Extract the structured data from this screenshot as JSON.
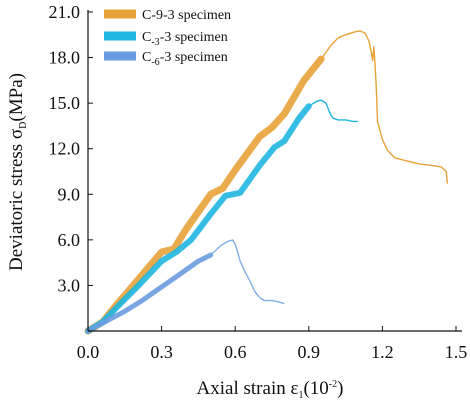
{
  "chart_data": {
    "type": "line",
    "xlabel": "Axial strain ε",
    "xlabel_sub": "1",
    "xlabel_unit": "(10",
    "xlabel_unit_sup": "-2",
    "xlabel_close": ")",
    "ylabel": "Deviatoric stress σ",
    "ylabel_sub": "D",
    "ylabel_unit": "(MPa)",
    "xlim": [
      0.0,
      1.5
    ],
    "ylim": [
      0.0,
      21.0
    ],
    "xticks": [
      "0.0",
      "0.3",
      "0.6",
      "0.9",
      "1.2",
      "1.5"
    ],
    "yticks": [
      "3.0",
      "6.0",
      "9.0",
      "12.0",
      "15.0",
      "18.0",
      "21.0"
    ],
    "grid": false,
    "legend_position": "top-left",
    "series": [
      {
        "name": "C-9-3 specimen",
        "name_parts": [
          "C-9-3 specimen"
        ],
        "color": "#e8a23a",
        "band_color": "#e8a23a",
        "band_width": 7,
        "band_x": [
          0.0,
          0.06,
          0.12,
          0.2,
          0.3,
          0.35,
          0.4,
          0.5,
          0.55,
          0.6,
          0.7,
          0.75,
          0.8,
          0.88,
          0.95
        ],
        "band_y": [
          0.0,
          0.6,
          1.8,
          3.3,
          5.2,
          5.4,
          6.7,
          9.0,
          9.4,
          10.6,
          12.8,
          13.4,
          14.3,
          16.5,
          17.9
        ],
        "x": [
          0.95,
          0.99,
          1.02,
          1.05,
          1.07,
          1.09,
          1.11,
          1.13,
          1.145,
          1.155,
          1.16,
          1.165,
          1.17,
          1.175,
          1.18,
          1.19,
          1.2,
          1.22,
          1.25,
          1.3,
          1.35,
          1.4,
          1.44,
          1.46,
          1.465
        ],
        "y": [
          17.9,
          18.8,
          19.3,
          19.5,
          19.6,
          19.7,
          19.75,
          19.6,
          19.1,
          18.3,
          17.8,
          18.7,
          17.6,
          16.0,
          13.8,
          13.2,
          12.6,
          11.9,
          11.4,
          11.2,
          11.0,
          10.9,
          10.8,
          10.5,
          9.7
        ]
      },
      {
        "name_parts": [
          "C",
          "-3",
          "-3 specimen"
        ],
        "color": "#1fb6e0",
        "band_color": "#1fb6e0",
        "band_width": 6,
        "band_x": [
          0.0,
          0.06,
          0.12,
          0.2,
          0.3,
          0.36,
          0.42,
          0.5,
          0.56,
          0.62,
          0.7,
          0.76,
          0.8,
          0.86,
          0.9
        ],
        "band_y": [
          0.0,
          0.6,
          1.6,
          2.9,
          4.6,
          5.2,
          6.0,
          7.7,
          8.9,
          9.1,
          10.9,
          12.1,
          12.5,
          14.0,
          14.8
        ],
        "x": [
          0.9,
          0.93,
          0.95,
          0.97,
          0.98,
          0.99,
          1.0,
          1.02,
          1.05,
          1.08,
          1.1
        ],
        "y": [
          14.8,
          15.1,
          15.2,
          15.0,
          14.6,
          14.2,
          14.0,
          13.9,
          13.9,
          13.8,
          13.8
        ]
      },
      {
        "name_parts": [
          "C",
          "-6",
          "-3 specimen"
        ],
        "color": "#7fb0e8",
        "band_color": "#6a9ce0",
        "band_width": 5,
        "band_x": [
          0.0,
          0.08,
          0.15,
          0.22,
          0.3,
          0.38,
          0.45,
          0.5
        ],
        "band_y": [
          0.0,
          0.7,
          1.3,
          2.0,
          2.9,
          3.8,
          4.6,
          5.0
        ],
        "x": [
          0.5,
          0.54,
          0.57,
          0.59,
          0.6,
          0.61,
          0.62,
          0.64,
          0.66,
          0.68,
          0.7,
          0.72,
          0.75,
          0.78,
          0.8
        ],
        "y": [
          5.0,
          5.6,
          5.9,
          6.0,
          5.7,
          5.2,
          4.6,
          3.9,
          3.3,
          2.6,
          2.2,
          2.0,
          2.0,
          1.9,
          1.8
        ]
      }
    ]
  }
}
